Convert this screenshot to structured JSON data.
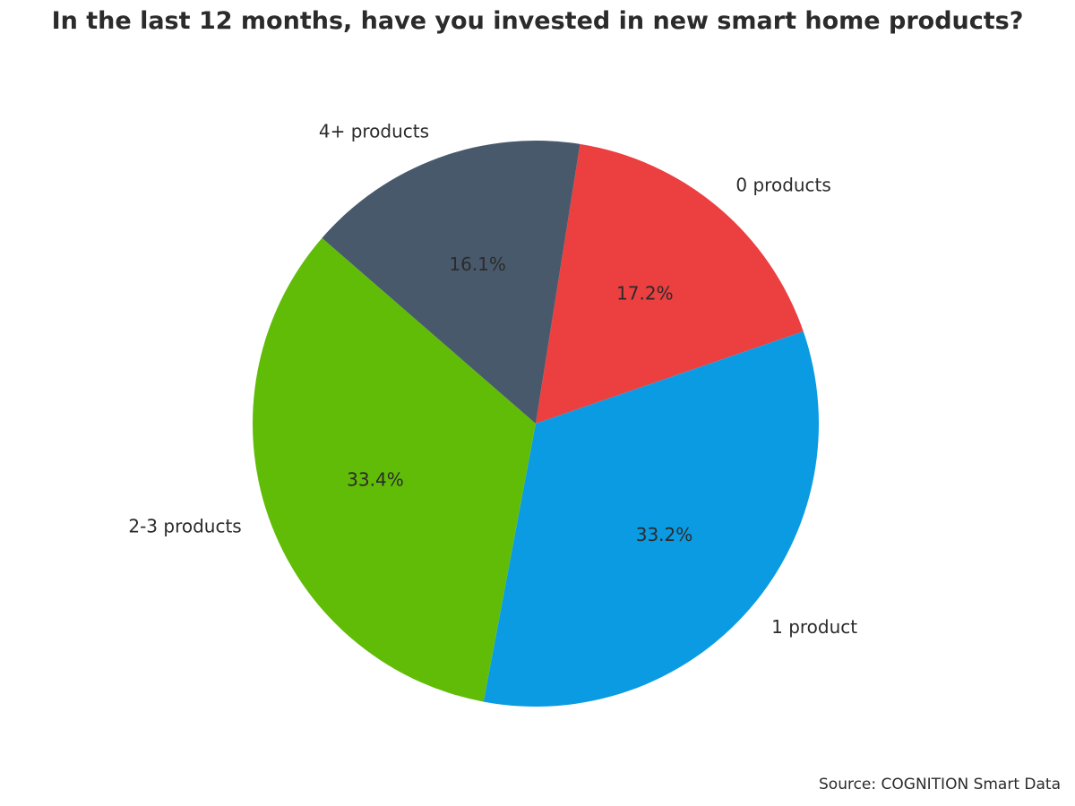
{
  "chart_data": {
    "type": "pie",
    "title": "In the last 12 months, have you invested in new smart home products?",
    "slices": [
      {
        "label": "0 products",
        "value": 17.2,
        "value_label": "17.2%",
        "color": "#eb3f40"
      },
      {
        "label": "1 product",
        "value": 33.2,
        "value_label": "33.2%",
        "color": "#0a9be2"
      },
      {
        "label": "2-3 products",
        "value": 33.4,
        "value_label": "33.4%",
        "color": "#61bc08"
      },
      {
        "label": "4+ products",
        "value": 16.1,
        "value_label": "16.1%",
        "color": "#48596b"
      }
    ],
    "start_angle_deg": 81,
    "direction": "clockwise",
    "source": "Source: COGNITION Smart Data"
  }
}
